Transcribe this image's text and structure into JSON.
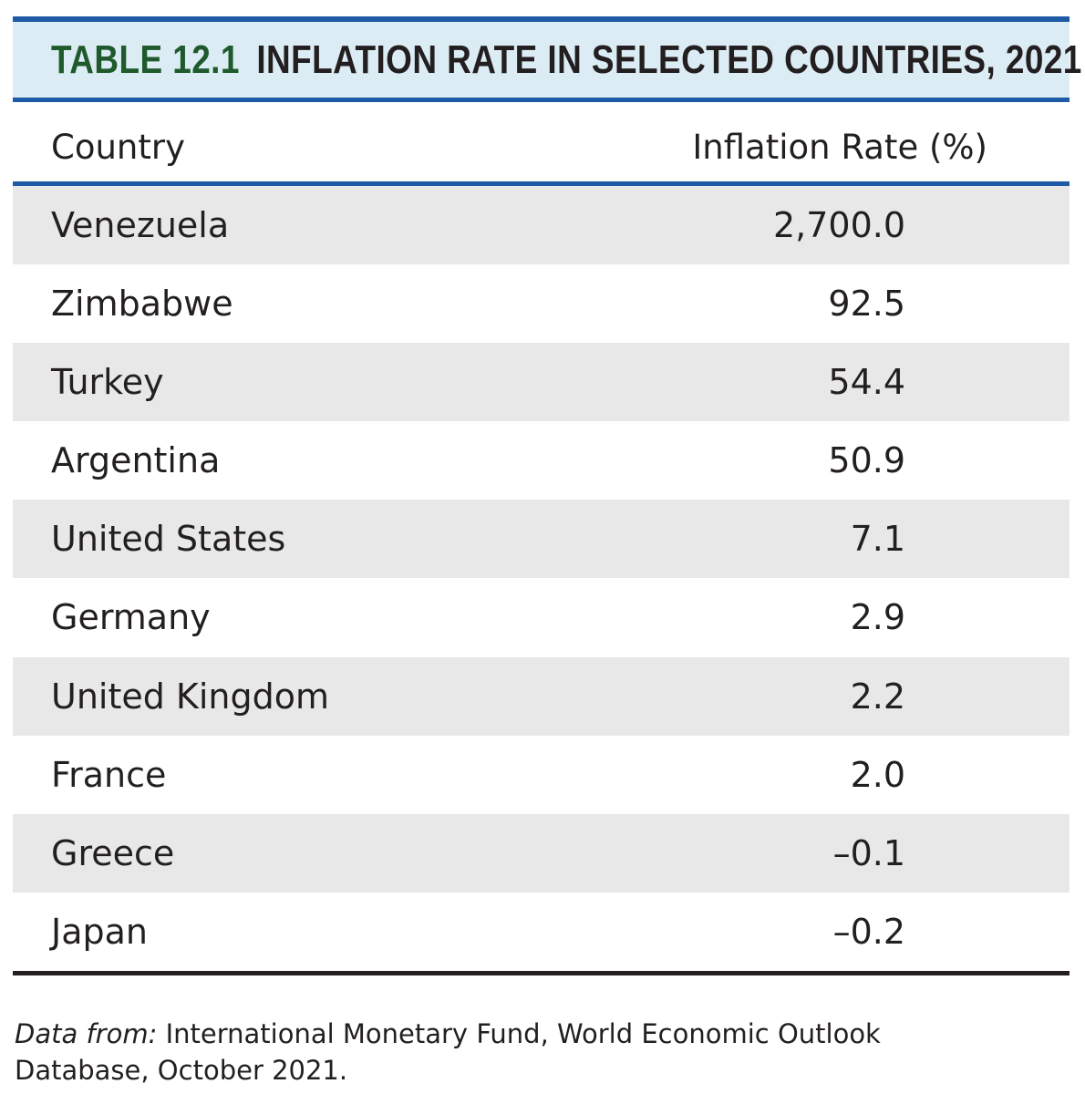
{
  "table": {
    "label": "TABLE 12.1",
    "title": "INFLATION RATE IN SELECTED COUNTRIES, 2021",
    "columns": {
      "country": "Country",
      "rate": "Inflation Rate (%)"
    },
    "rows": [
      {
        "country": "Venezuela",
        "rate": "2,700.0"
      },
      {
        "country": "Zimbabwe",
        "rate": "92.5"
      },
      {
        "country": "Turkey",
        "rate": "54.4"
      },
      {
        "country": "Argentina",
        "rate": "50.9"
      },
      {
        "country": "United States",
        "rate": "7.1"
      },
      {
        "country": "Germany",
        "rate": "2.9"
      },
      {
        "country": "United Kingdom",
        "rate": "2.2"
      },
      {
        "country": "France",
        "rate": "2.0"
      },
      {
        "country": "Greece",
        "rate": "–0.1"
      },
      {
        "country": "Japan",
        "rate": "–0.2"
      }
    ]
  },
  "source": {
    "label": "Data from:",
    "text": "International Monetary Fund, World Economic Outlook Database, October 2021."
  },
  "colors": {
    "accent_blue": "#1f5aa6",
    "title_band": "#dcecf4",
    "label_green": "#1f5a2c",
    "row_shade": "#e8e8e9"
  }
}
